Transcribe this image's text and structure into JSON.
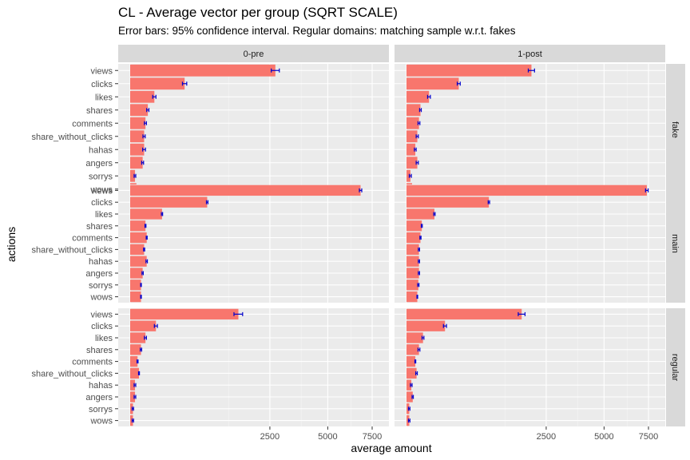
{
  "chart_data": {
    "type": "bar",
    "orientation": "horizontal",
    "title": "CL - Average vector per group (SQRT SCALE)",
    "subtitle": "Error bars: 95% confidence interval. Regular domains: matching sample w.r.t. fakes",
    "xlabel": "average amount",
    "ylabel": "actions",
    "x_scale": "sqrt",
    "xlim": [
      0,
      9500
    ],
    "x_ticks": [
      2500,
      5000,
      7500
    ],
    "x_tick_labels": [
      "2500",
      "5000",
      "7500"
    ],
    "grid": true,
    "bar_color": "#F8766D",
    "errorbar_color": "#0000CC",
    "categories": [
      "views",
      "clicks",
      "likes",
      "shares",
      "comments",
      "share_without_clicks",
      "hahas",
      "angers",
      "sorrys",
      "wows"
    ],
    "columns": [
      "0-pre",
      "1-post"
    ],
    "rows": [
      "fake",
      "main",
      "regular"
    ],
    "panels": [
      {
        "row": "fake",
        "column": "0-pre",
        "values": [
          2700,
          380,
          75,
          40,
          30,
          25,
          25,
          20,
          3,
          5
        ],
        "errors": [
          150,
          30,
          10,
          5,
          4,
          4,
          5,
          3,
          1,
          1
        ]
      },
      {
        "row": "fake",
        "column": "1-post",
        "values": [
          2000,
          350,
          65,
          25,
          20,
          15,
          10,
          15,
          2,
          4
        ],
        "errors": [
          100,
          20,
          8,
          3,
          3,
          3,
          2,
          3,
          1,
          1
        ]
      },
      {
        "row": "main",
        "column": "0-pre",
        "values": [
          6800,
          760,
          130,
          30,
          35,
          25,
          35,
          20,
          15,
          15
        ],
        "errors": [
          70,
          15,
          5,
          2,
          2,
          2,
          3,
          2,
          1,
          1
        ]
      },
      {
        "row": "main",
        "column": "1-post",
        "values": [
          7400,
          870,
          100,
          30,
          25,
          20,
          20,
          20,
          18,
          15
        ],
        "errors": [
          80,
          15,
          5,
          2,
          2,
          2,
          2,
          2,
          2,
          1
        ]
      },
      {
        "row": "regular",
        "column": "0-pre",
        "values": [
          1500,
          85,
          30,
          15,
          7,
          10,
          3,
          3,
          1,
          1
        ],
        "errors": [
          120,
          10,
          4,
          2,
          1,
          1,
          1,
          1,
          0.5,
          0.5
        ]
      },
      {
        "row": "regular",
        "column": "1-post",
        "values": [
          1700,
          190,
          35,
          20,
          10,
          13,
          3,
          5,
          1,
          1
        ],
        "errors": [
          100,
          15,
          4,
          3,
          1,
          2,
          1,
          1,
          0.5,
          0.5
        ]
      }
    ]
  }
}
